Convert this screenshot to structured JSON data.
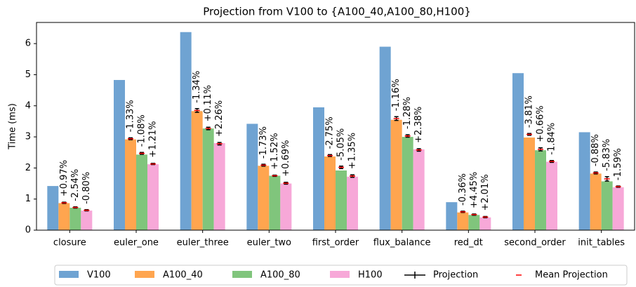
{
  "chart_data": {
    "type": "bar",
    "title": "Projection from V100 to {A100_40,A100_80,H100}",
    "y_label": "Time (ms)",
    "categories": [
      "closure",
      "euler_one",
      "euler_three",
      "euler_two",
      "first_order",
      "flux_balance",
      "red_dt",
      "second_order",
      "init_tables"
    ],
    "ylim": [
      0,
      6.68
    ],
    "yticks": [
      0,
      1,
      2,
      3,
      4,
      5,
      6
    ],
    "series": [
      {
        "name": "V100",
        "color": "#6fa3d2",
        "values": [
          1.42,
          4.83,
          6.37,
          3.42,
          3.95,
          5.9,
          0.9,
          5.05,
          3.15
        ]
      },
      {
        "name": "A100_40",
        "color": "#ffa54f",
        "values": [
          0.87,
          2.92,
          3.83,
          2.07,
          2.37,
          3.55,
          0.57,
          2.98,
          1.82
        ],
        "projection": [
          0.88,
          2.94,
          3.85,
          2.09,
          2.4,
          3.59,
          0.59,
          3.08,
          1.84
        ],
        "projection_err": [
          0.02,
          0.03,
          0.06,
          0.03,
          0.03,
          0.06,
          0.02,
          0.03,
          0.03
        ],
        "mean_projection": [
          0.88,
          2.94,
          3.85,
          2.09,
          2.4,
          3.59,
          0.59,
          3.08,
          1.84
        ],
        "labels": [
          "+0.97%",
          "-1.33%",
          "-1.34%",
          "-1.73%",
          "-2.75%",
          "-1.16%",
          "-0.36%",
          "-3.81%",
          "-0.88%"
        ]
      },
      {
        "name": "A100_80",
        "color": "#80c57c",
        "values": [
          0.72,
          2.43,
          3.27,
          1.75,
          1.92,
          3.0,
          0.49,
          2.57,
          1.57
        ],
        "projection": [
          0.73,
          2.47,
          3.27,
          1.75,
          2.02,
          3.03,
          0.5,
          2.6,
          1.65
        ],
        "projection_err": [
          0.02,
          0.03,
          0.04,
          0.02,
          0.04,
          0.04,
          0.02,
          0.05,
          0.07
        ],
        "mean_projection": [
          0.73,
          2.47,
          3.27,
          1.75,
          2.02,
          3.03,
          0.5,
          2.6,
          1.65
        ],
        "labels": [
          "-2.54%",
          "-1.08%",
          "+0.11%",
          "+1.52%",
          "-5.05%",
          "-1.28%",
          "+4.45%",
          "+0.66%",
          "-5.83%"
        ]
      },
      {
        "name": "H100",
        "color": "#f7a8d8",
        "values": [
          0.63,
          2.12,
          2.8,
          1.5,
          1.72,
          2.6,
          0.41,
          2.2,
          1.38
        ],
        "projection": [
          0.64,
          2.13,
          2.78,
          1.51,
          1.74,
          2.58,
          0.42,
          2.21,
          1.4
        ],
        "projection_err": [
          0.02,
          0.02,
          0.04,
          0.03,
          0.04,
          0.04,
          0.02,
          0.03,
          0.02
        ],
        "mean_projection": [
          0.64,
          2.13,
          2.78,
          1.51,
          1.74,
          2.58,
          0.42,
          2.21,
          1.4
        ],
        "labels": [
          "-0.80%",
          "+1.21%",
          "+2.26%",
          "+0.69%",
          "+1.35%",
          "+2.38%",
          "+2.01%",
          "-1.84%",
          "-1.59%"
        ]
      }
    ],
    "projection_legend": {
      "name": "Projection",
      "color": "#000000"
    },
    "mean_legend": {
      "name": "Mean Projection",
      "color": "#ff0000"
    },
    "legend": "bottom"
  }
}
